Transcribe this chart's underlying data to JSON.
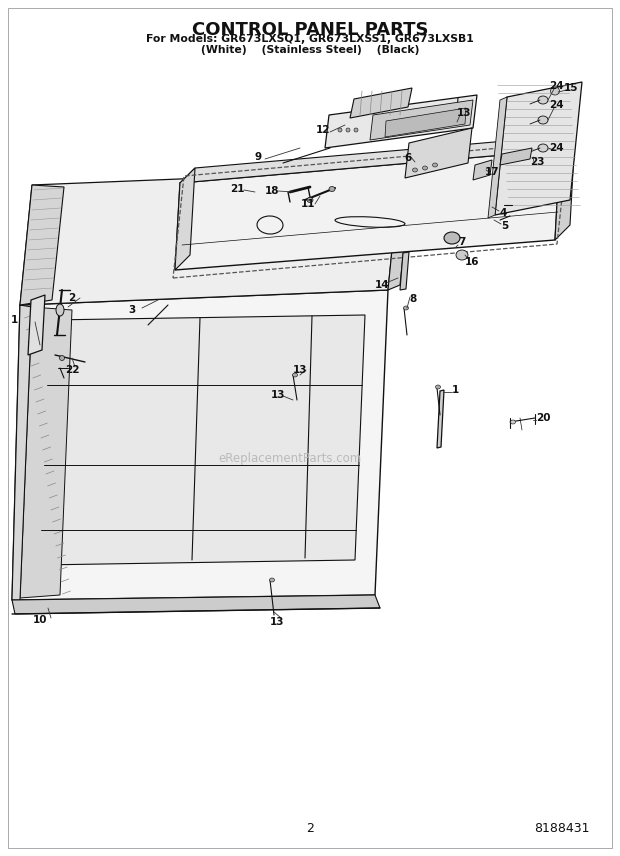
{
  "title": "CONTROL PANEL PARTS",
  "subtitle": "For Models: GR673LXSQ1, GR673LXSS1, GR673LXSB1",
  "subtitle2": "(White)    (Stainless Steel)    (Black)",
  "page_number": "2",
  "part_number": "8188431",
  "watermark": "eReplacementParts.com",
  "bg_color": "#ffffff",
  "line_color": "#111111",
  "title_fontsize": 13,
  "subtitle_fontsize": 7.8,
  "label_fontsize": 7.5
}
